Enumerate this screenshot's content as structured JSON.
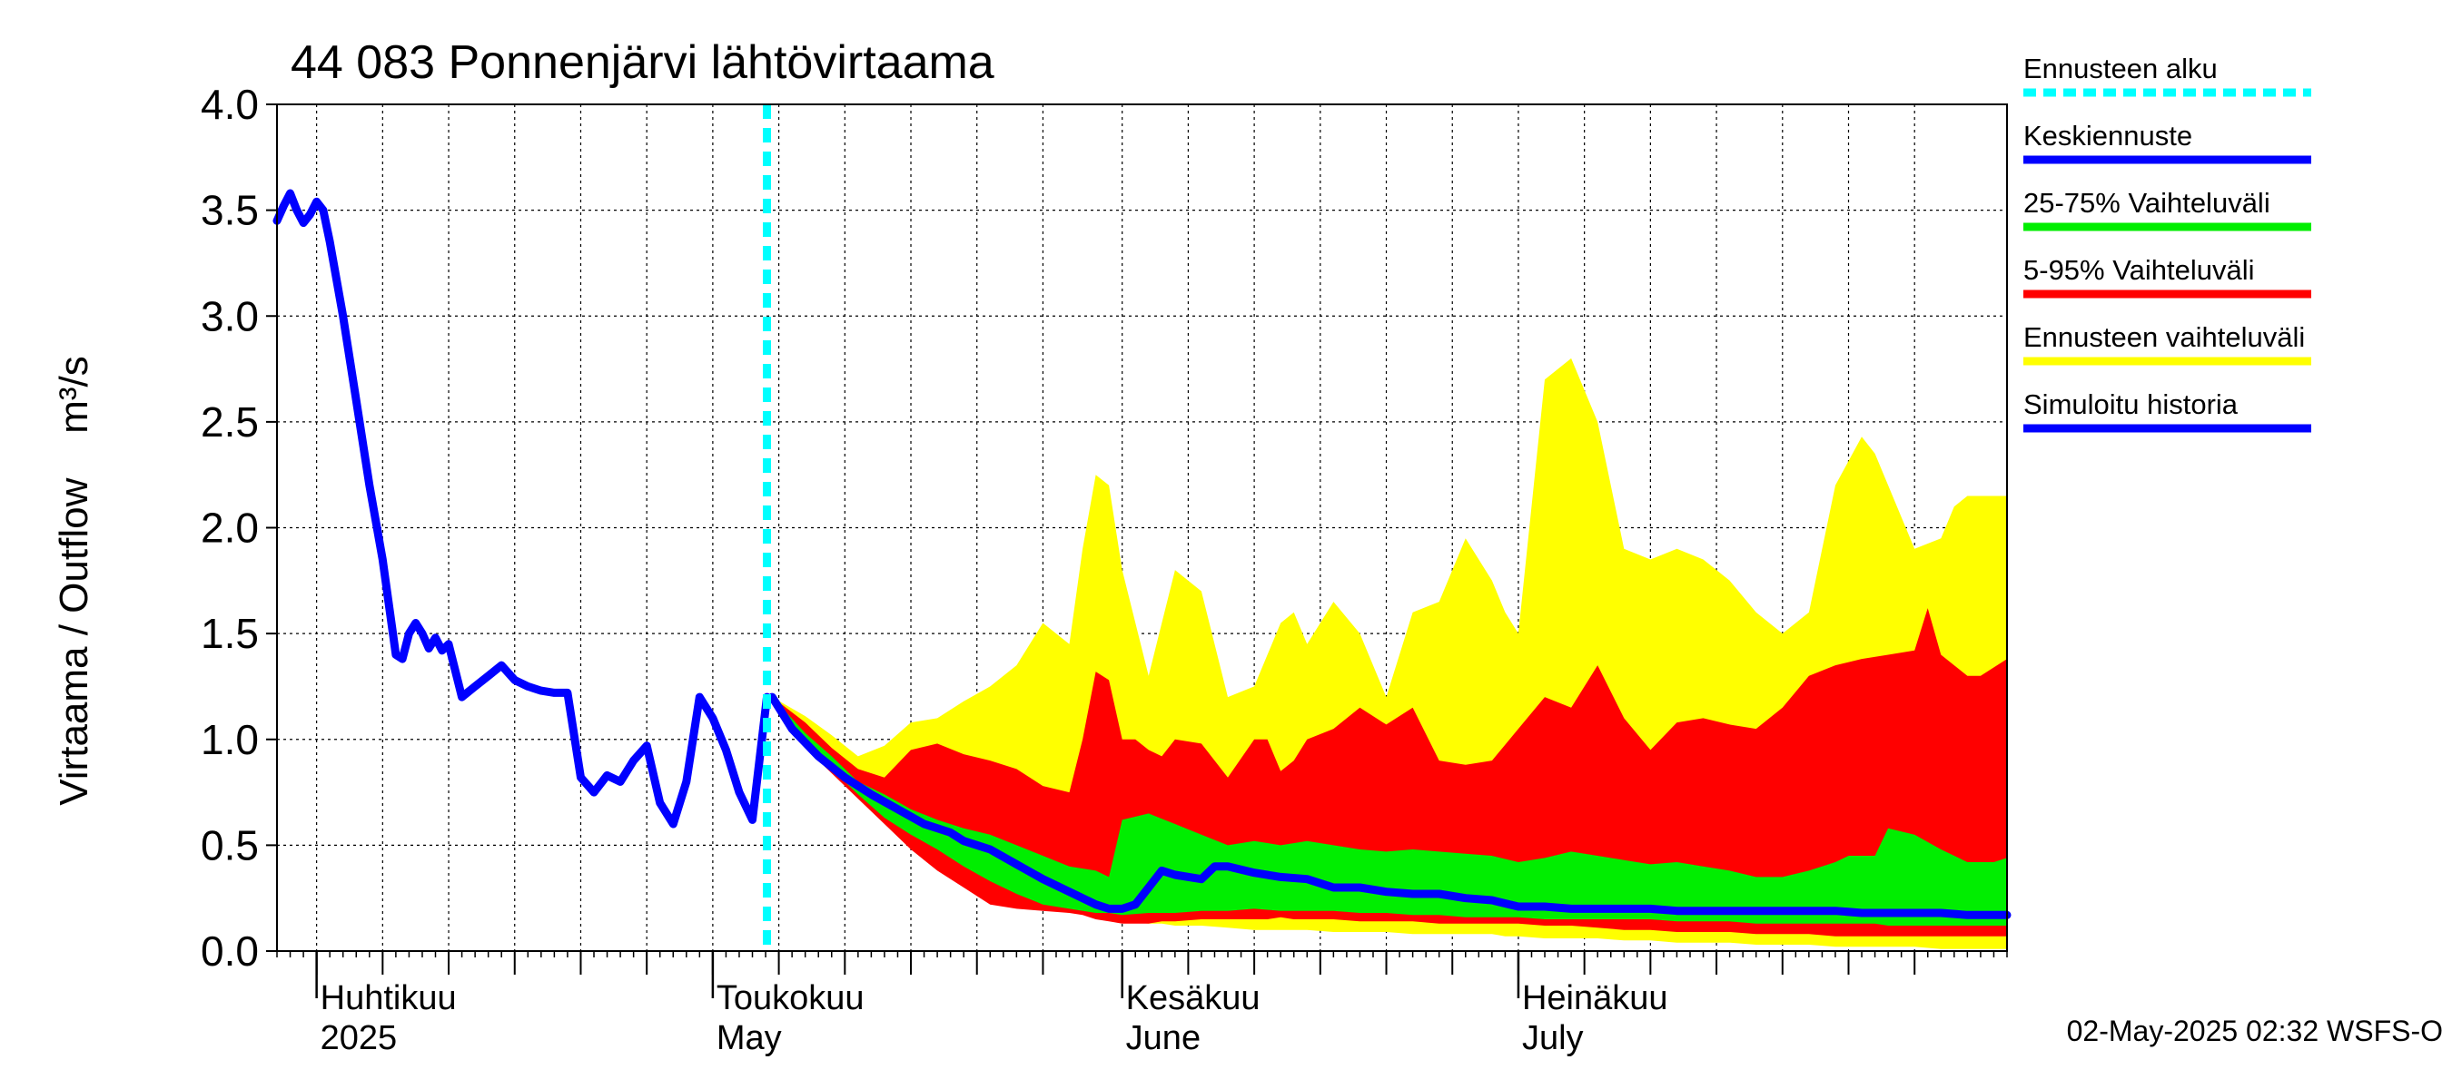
{
  "chart_data": {
    "type": "area",
    "title": "44 083 Ponnenjärvi lähtövirtaama",
    "ylabel": "Virtaama / Outflow    m³/s",
    "ylim": [
      0,
      4
    ],
    "yticks": [
      "0.0",
      "0.5",
      "1.0",
      "1.5",
      "2.0",
      "2.5",
      "3.0",
      "3.5",
      "4.0"
    ],
    "x_unit": "days since 2025-03-25",
    "xlim": [
      0,
      131
    ],
    "forecast_start": 37.1,
    "month_labels": [
      {
        "x": 3,
        "fi": "Huhtikuu",
        "en": "2025"
      },
      {
        "x": 33,
        "fi": "Toukokuu",
        "en": "May"
      },
      {
        "x": 64,
        "fi": "Kesäkuu",
        "en": "June"
      },
      {
        "x": 94,
        "fi": "Heinäkuu",
        "en": "July"
      }
    ],
    "x_gridlines": [
      3,
      8,
      13,
      18,
      23,
      28,
      33,
      38,
      43,
      48,
      53,
      58,
      64,
      69,
      74,
      79,
      84,
      89,
      94,
      99,
      104,
      109,
      114,
      119,
      124
    ],
    "series": [
      {
        "name": "Ennusteen vaihteluväli",
        "color": "#ffff00",
        "x": [
          37.5,
          40,
          42,
          44,
          46,
          48,
          50,
          52,
          54,
          56,
          58,
          60,
          61,
          62,
          63,
          64,
          66,
          67,
          68,
          70,
          72,
          74,
          76,
          77,
          78,
          80,
          82,
          84,
          86,
          88,
          90,
          92,
          93,
          94,
          96,
          98,
          100,
          102,
          104,
          106,
          108,
          109,
          110,
          112,
          114,
          116,
          118,
          120,
          121,
          122,
          124,
          126,
          127,
          128,
          129,
          131
        ],
        "upper": [
          1.2,
          1.11,
          1.02,
          0.92,
          0.97,
          1.08,
          1.1,
          1.18,
          1.25,
          1.35,
          1.55,
          1.45,
          1.9,
          2.25,
          2.2,
          1.8,
          1.3,
          1.55,
          1.8,
          1.7,
          1.2,
          1.25,
          1.55,
          1.6,
          1.45,
          1.65,
          1.5,
          1.2,
          1.6,
          1.65,
          1.95,
          1.75,
          1.6,
          1.5,
          2.7,
          2.8,
          2.5,
          1.9,
          1.85,
          1.9,
          1.85,
          1.8,
          1.75,
          1.6,
          1.5,
          1.6,
          2.2,
          2.43,
          2.35,
          2.2,
          1.9,
          1.95,
          2.1,
          2.15,
          2.15,
          2.15
        ],
        "lower": [
          1.2,
          1.0,
          0.9,
          0.78,
          0.68,
          0.55,
          0.45,
          0.38,
          0.3,
          0.24,
          0.2,
          0.18,
          0.18,
          0.17,
          0.15,
          0.14,
          0.13,
          0.13,
          0.12,
          0.12,
          0.11,
          0.1,
          0.1,
          0.1,
          0.1,
          0.09,
          0.09,
          0.09,
          0.08,
          0.08,
          0.08,
          0.08,
          0.07,
          0.07,
          0.06,
          0.06,
          0.06,
          0.05,
          0.05,
          0.04,
          0.04,
          0.04,
          0.04,
          0.03,
          0.03,
          0.03,
          0.02,
          0.02,
          0.02,
          0.02,
          0.02,
          0.01,
          0.01,
          0.01,
          0.01,
          0.01
        ]
      },
      {
        "name": "5-95% Vaihteluväli",
        "color": "#ff0000",
        "x": [
          37.5,
          40,
          42,
          44,
          46,
          48,
          50,
          52,
          54,
          56,
          58,
          60,
          61,
          62,
          63,
          64,
          65,
          66,
          67,
          68,
          70,
          72,
          74,
          75,
          76,
          77,
          78,
          80,
          82,
          84,
          86,
          88,
          90,
          92,
          94,
          96,
          98,
          100,
          102,
          104,
          106,
          108,
          110,
          112,
          114,
          116,
          118,
          120,
          122,
          124,
          125,
          126,
          127,
          128,
          129,
          131
        ],
        "upper": [
          1.2,
          1.08,
          0.96,
          0.86,
          0.82,
          0.95,
          0.98,
          0.93,
          0.9,
          0.86,
          0.78,
          0.75,
          1.0,
          1.32,
          1.28,
          1.0,
          1.0,
          0.95,
          0.92,
          1.0,
          0.98,
          0.82,
          1.0,
          1.0,
          0.85,
          0.9,
          1.0,
          1.05,
          1.15,
          1.07,
          1.15,
          0.9,
          0.88,
          0.9,
          1.05,
          1.2,
          1.15,
          1.35,
          1.1,
          0.95,
          1.08,
          1.1,
          1.07,
          1.05,
          1.15,
          1.3,
          1.35,
          1.38,
          1.4,
          1.42,
          1.62,
          1.4,
          1.35,
          1.3,
          1.3,
          1.38
        ],
        "lower": [
          1.2,
          0.96,
          0.84,
          0.72,
          0.6,
          0.48,
          0.38,
          0.3,
          0.22,
          0.2,
          0.19,
          0.18,
          0.17,
          0.15,
          0.14,
          0.13,
          0.13,
          0.13,
          0.14,
          0.14,
          0.15,
          0.15,
          0.15,
          0.15,
          0.16,
          0.15,
          0.15,
          0.15,
          0.14,
          0.14,
          0.14,
          0.13,
          0.13,
          0.13,
          0.13,
          0.12,
          0.12,
          0.11,
          0.1,
          0.1,
          0.09,
          0.09,
          0.09,
          0.08,
          0.08,
          0.08,
          0.07,
          0.07,
          0.07,
          0.07,
          0.07,
          0.07,
          0.07,
          0.07,
          0.07,
          0.07
        ]
      },
      {
        "name": "25-75% Vaihteluväli",
        "color": "#00ee00",
        "x": [
          37.5,
          40,
          42,
          44,
          46,
          48,
          50,
          52,
          54,
          56,
          58,
          60,
          62,
          63,
          64,
          66,
          68,
          70,
          72,
          74,
          76,
          78,
          80,
          82,
          84,
          86,
          88,
          90,
          92,
          94,
          96,
          98,
          100,
          102,
          104,
          106,
          108,
          110,
          112,
          114,
          116,
          118,
          119,
          120,
          121,
          122,
          124,
          126,
          128,
          130,
          131
        ],
        "upper": [
          1.2,
          1.03,
          0.92,
          0.8,
          0.74,
          0.67,
          0.62,
          0.58,
          0.55,
          0.5,
          0.45,
          0.4,
          0.38,
          0.35,
          0.62,
          0.65,
          0.6,
          0.55,
          0.5,
          0.52,
          0.5,
          0.52,
          0.5,
          0.48,
          0.47,
          0.48,
          0.47,
          0.46,
          0.45,
          0.42,
          0.44,
          0.47,
          0.45,
          0.43,
          0.41,
          0.42,
          0.4,
          0.38,
          0.35,
          0.35,
          0.38,
          0.42,
          0.45,
          0.45,
          0.45,
          0.58,
          0.55,
          0.48,
          0.42,
          0.42,
          0.44
        ],
        "lower": [
          1.2,
          0.99,
          0.86,
          0.74,
          0.63,
          0.55,
          0.48,
          0.4,
          0.33,
          0.27,
          0.22,
          0.2,
          0.18,
          0.18,
          0.17,
          0.18,
          0.18,
          0.19,
          0.19,
          0.2,
          0.19,
          0.19,
          0.19,
          0.18,
          0.18,
          0.17,
          0.17,
          0.16,
          0.16,
          0.16,
          0.15,
          0.15,
          0.15,
          0.15,
          0.15,
          0.14,
          0.14,
          0.14,
          0.13,
          0.13,
          0.13,
          0.13,
          0.13,
          0.13,
          0.13,
          0.12,
          0.12,
          0.12,
          0.12,
          0.12,
          0.12
        ]
      },
      {
        "name": "Keskiennuste",
        "color": "#0000ff",
        "x": [
          37.5,
          39,
          41,
          43,
          45,
          47,
          49,
          51,
          52,
          54,
          56,
          58,
          60,
          62,
          63,
          64,
          65,
          66,
          67,
          68,
          70,
          71,
          72,
          74,
          76,
          78,
          80,
          82,
          84,
          86,
          88,
          90,
          92,
          94,
          96,
          98,
          100,
          102,
          104,
          106,
          108,
          110,
          112,
          114,
          116,
          118,
          120,
          122,
          124,
          126,
          128,
          130,
          131
        ],
        "y": [
          1.2,
          1.05,
          0.92,
          0.82,
          0.74,
          0.67,
          0.6,
          0.56,
          0.52,
          0.48,
          0.41,
          0.34,
          0.28,
          0.22,
          0.2,
          0.2,
          0.22,
          0.3,
          0.38,
          0.36,
          0.34,
          0.4,
          0.4,
          0.37,
          0.35,
          0.34,
          0.3,
          0.3,
          0.28,
          0.27,
          0.27,
          0.25,
          0.24,
          0.21,
          0.21,
          0.2,
          0.2,
          0.2,
          0.2,
          0.19,
          0.19,
          0.19,
          0.19,
          0.19,
          0.19,
          0.19,
          0.18,
          0.18,
          0.18,
          0.18,
          0.17,
          0.17,
          0.17
        ]
      },
      {
        "name": "Simuloitu historia",
        "color": "#0000ff",
        "x": [
          0,
          0.5,
          1,
          1.5,
          2,
          2.5,
          3,
          3.5,
          4,
          5,
          6,
          7,
          8,
          9,
          9.5,
          10,
          10.5,
          11,
          11.5,
          12,
          12.5,
          13,
          14,
          15,
          16,
          17,
          18,
          19,
          20,
          21,
          22,
          23,
          24,
          25,
          26,
          27,
          28,
          29,
          30,
          31,
          32,
          33,
          34,
          35,
          36,
          37.1
        ],
        "y": [
          3.45,
          3.52,
          3.58,
          3.5,
          3.44,
          3.48,
          3.54,
          3.5,
          3.35,
          3.0,
          2.6,
          2.2,
          1.85,
          1.4,
          1.38,
          1.5,
          1.55,
          1.5,
          1.43,
          1.48,
          1.42,
          1.45,
          1.2,
          1.25,
          1.3,
          1.35,
          1.28,
          1.25,
          1.23,
          1.22,
          1.22,
          0.82,
          0.75,
          0.83,
          0.8,
          0.9,
          0.97,
          0.7,
          0.6,
          0.8,
          1.2,
          1.1,
          0.95,
          0.75,
          0.62,
          1.2
        ]
      },
      {
        "name": "Ennusteen alku",
        "color": "#00ffff"
      }
    ],
    "legend": [
      {
        "label": "Ennusteen alku",
        "color": "#00ffff",
        "style": "dashed"
      },
      {
        "label": "Keskiennuste",
        "color": "#0000ff",
        "style": "solid"
      },
      {
        "label": "25-75% Vaihteluväli",
        "color": "#00ee00",
        "style": "solid"
      },
      {
        "label": "5-95% Vaihteluväli",
        "color": "#ff0000",
        "style": "solid"
      },
      {
        "label": "Ennusteen vaihteluväli",
        "color": "#ffff00",
        "style": "solid"
      },
      {
        "label": "Simuloitu historia",
        "color": "#0000ff",
        "style": "solid"
      }
    ],
    "legend_position": "right",
    "footer": "02-May-2025 02:32 WSFS-O"
  }
}
